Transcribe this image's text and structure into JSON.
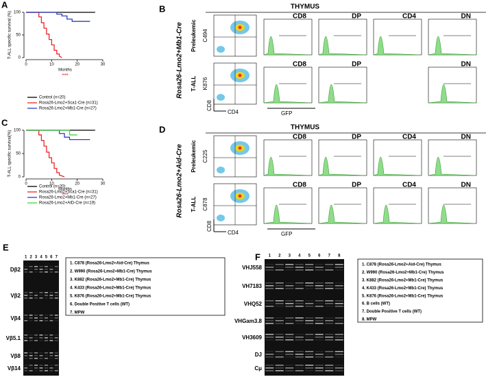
{
  "chart_data": [
    {
      "type": "line",
      "label": "A",
      "y_label": "T-ALL specific survival (%)",
      "x_label": "Months",
      "annotation": "***",
      "xlim": [
        0,
        30
      ],
      "xticks": [
        0,
        10,
        20,
        30
      ],
      "ylim": [
        0,
        100
      ],
      "yticks": [
        0,
        50,
        100
      ],
      "series": [
        {
          "name": "Control (n=20)",
          "color": "#000000",
          "x": [
            0,
            27
          ],
          "values": [
            100,
            100
          ]
        },
        {
          "name": "Rosa26-Lmo2+Sca1-Cre (n=31)",
          "color": "#e8262a",
          "x": [
            0,
            5,
            5,
            6,
            6,
            7,
            7,
            8,
            8,
            9,
            9,
            10,
            10,
            11,
            11,
            12,
            12,
            13,
            13,
            14
          ],
          "values": [
            100,
            100,
            90,
            90,
            77,
            77,
            65,
            65,
            52,
            52,
            40,
            40,
            28,
            28,
            16,
            16,
            8,
            8,
            3,
            0
          ]
        },
        {
          "name": "Rosa26-Lmo2+Mb1-Cre (n=27)",
          "color": "#2e3dbf",
          "x": [
            0,
            12,
            12,
            14,
            14,
            16,
            16,
            18,
            18,
            25
          ],
          "values": [
            100,
            100,
            96,
            96,
            92,
            92,
            85,
            85,
            80,
            80
          ]
        }
      ]
    },
    {
      "type": "line",
      "label": "C",
      "y_label": "T-ALL specific survival(%)",
      "x_label": "Months",
      "annotation": "***",
      "xlim": [
        0,
        30
      ],
      "xticks": [
        0,
        10,
        20,
        30
      ],
      "ylim": [
        0,
        100
      ],
      "yticks": [
        0,
        50,
        100
      ],
      "series": [
        {
          "name": "Control (n=20)",
          "color": "#000000",
          "x": [
            0,
            27
          ],
          "values": [
            100,
            100
          ]
        },
        {
          "name": "Rosa26-Lmo2+Sca1-Cre (n=31)",
          "color": "#e8262a",
          "x": [
            0,
            5,
            5,
            6,
            6,
            7,
            7,
            8,
            8,
            9,
            9,
            10,
            10,
            11,
            11,
            12,
            12,
            13,
            13,
            15
          ],
          "values": [
            100,
            100,
            90,
            90,
            78,
            78,
            66,
            66,
            53,
            53,
            41,
            41,
            30,
            30,
            18,
            18,
            9,
            9,
            4,
            0
          ]
        },
        {
          "name": "Rosa26-Lmo2+Mb1-Cre (n=27)",
          "color": "#3a35c8",
          "x": [
            0,
            13,
            13,
            15,
            15,
            17,
            17,
            25
          ],
          "values": [
            100,
            100,
            93,
            93,
            85,
            85,
            80,
            80
          ]
        },
        {
          "name": "Rosa26-Lmo2+AID-Cre (n=19)",
          "color": "#3fd43a",
          "x": [
            0,
            17,
            17,
            20
          ],
          "values": [
            100,
            100,
            90,
            90
          ]
        }
      ]
    }
  ],
  "panel_B": {
    "label": "B",
    "header": "THYMUS",
    "model": "Rosa26-Lmo2+Mb1-Cre",
    "rows": [
      {
        "stage": "Preleukemic",
        "sample": "C494",
        "populations": [
          "CD8",
          "DP",
          "CD4",
          "DN"
        ]
      },
      {
        "stage": "T-ALL",
        "sample": "K876",
        "populations": [
          "CD8",
          "DP",
          null,
          "DN"
        ]
      }
    ],
    "y_axis": "CD8",
    "x_axis": "CD4",
    "histogram_axis": "GFP"
  },
  "panel_D": {
    "label": "D",
    "header": "THYMUS",
    "model": "Rosa26-Lmo2+Aid-Cre",
    "rows": [
      {
        "stage": "Preleukemic",
        "sample": "C225",
        "populations": [
          "CD8",
          "DP",
          "CD4",
          "DN"
        ]
      },
      {
        "stage": "T-ALL",
        "sample": "C878",
        "populations": [
          "CD8",
          "DP",
          "CD4",
          "DN"
        ]
      }
    ],
    "y_axis": "CD8",
    "x_axis": "CD4",
    "histogram_axis": "GFP"
  },
  "panel_E": {
    "label": "E",
    "lanes": [
      "1",
      "2",
      "3",
      "4",
      "5",
      "6",
      "7"
    ],
    "bands": [
      "Dβ2",
      "Vβ2",
      "Vβ4",
      "Vβ5.1",
      "Vβ8",
      "Vβ14"
    ],
    "legend": [
      "1.   C878 (Rosa26-Lmo2+Aid-Cre) Thymus",
      "2.   W990 (Rosa26-Lmo2+Mb1-Cre) Thymus",
      "3.   K882 (Rosa26-Lmo2+Mb1-Cre) Thymus",
      "4.   K433 (Rosa26-Lmo2+Mb1-Cre) Thymus",
      "5.   K876 (Rosa26-Lmo2+Mb1-Cre) Thymus",
      "6.   Double Positive T cells (WT)",
      "7.   MPW"
    ]
  },
  "panel_F": {
    "label": "F",
    "lanes": [
      "1",
      "2",
      "3",
      "4",
      "5",
      "6",
      "7",
      "8"
    ],
    "bands": [
      "VHJ558",
      "VH7183",
      "VHQ52",
      "VHGam3.8",
      "VH3609",
      "DJ",
      "Cμ"
    ],
    "legend": [
      "1.   C878 (Rosa26-Lmo2+Aid-Cre) Thymus",
      "2.   W990 (Rosa26-Lmo2+Mb1-Cre) Thymus",
      "3.   K882 (Rosa26-Lmo2+Mb1-Cre) Thymus",
      "4.   K433 (Rosa26-Lmo2+Mb1-Cre) Thymus",
      "5.   K876 (Rosa26-Lmo2+Mb1-Cre) Thymus",
      "6.   B cells (WT)",
      "7.   Double Positive T cells (WT)",
      "8.   MPW"
    ]
  }
}
